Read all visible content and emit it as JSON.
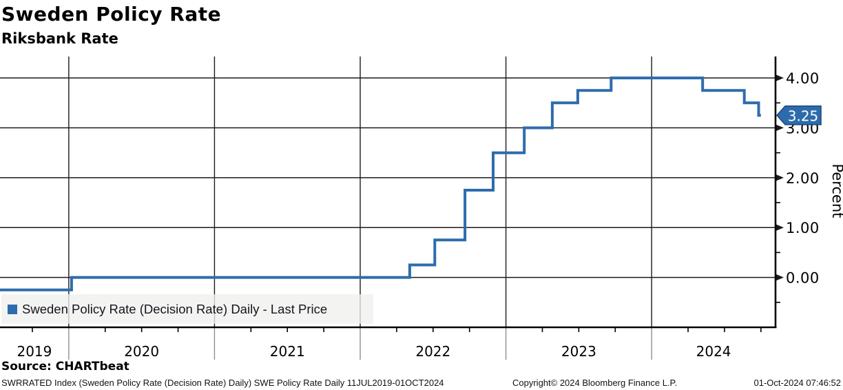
{
  "header": {
    "title": "Sweden Policy Rate",
    "subtitle": "Riksbank Rate"
  },
  "legend": {
    "label": "Sweden Policy Rate (Decision Rate) Daily - Last Price"
  },
  "source_label": "Source: CHARTbeat",
  "footer": {
    "left": "SWRRATED Index (Sweden Policy Rate (Decision Rate) Daily) SWE Policy Rate  Daily 11JUL2019-01OCT2024",
    "center": "Copyright© 2024 Bloomberg Finance L.P.",
    "right": "01-Oct-2024 07:46:52"
  },
  "colors": {
    "line": "#2d6cac",
    "grid": "#1a1a1a",
    "axis": "#000000",
    "year_separator": "#8f8f8f",
    "badge_bg": "#2d6cac",
    "badge_border": "#1a4674",
    "badge_text": "#ffffff",
    "legend_bg": "#f0f0ed",
    "text": "#000000"
  },
  "chart_data": {
    "type": "line",
    "subtype": "step-after",
    "title": "Sweden Policy Rate",
    "subtitle": "Riksbank Rate",
    "ylabel": "Percent",
    "xlabel": "",
    "grid": true,
    "legend_position": "inside-bottom-left",
    "x_range": [
      2019.528,
      2024.85
    ],
    "y_range": [
      -1.0,
      4.43
    ],
    "x_ticks": [
      "2019",
      "2020",
      "2021",
      "2022",
      "2023",
      "2024"
    ],
    "x_minor_step": 0.25,
    "y_major_ticks": [
      0,
      1,
      2,
      3,
      4
    ],
    "y_tick_labels": [
      "0.00",
      "1.00",
      "2.00",
      "3.00",
      "4.00"
    ],
    "y_minor_step": 0.5,
    "last_price": 3.25,
    "last_price_label": "3.25",
    "series": [
      {
        "name": "Sweden Policy Rate (Decision Rate) Daily - Last Price",
        "color": "#2d6cac",
        "points": [
          [
            2019.528,
            -0.25
          ],
          [
            2020.019,
            0.0
          ],
          [
            2022.34,
            0.25
          ],
          [
            2022.512,
            0.75
          ],
          [
            2022.719,
            1.75
          ],
          [
            2022.912,
            2.5
          ],
          [
            2023.126,
            3.0
          ],
          [
            2023.318,
            3.5
          ],
          [
            2023.493,
            3.75
          ],
          [
            2023.722,
            4.0
          ],
          [
            2024.35,
            3.75
          ],
          [
            2024.636,
            3.5
          ],
          [
            2024.734,
            3.25
          ],
          [
            2024.75,
            3.25
          ]
        ]
      }
    ]
  }
}
